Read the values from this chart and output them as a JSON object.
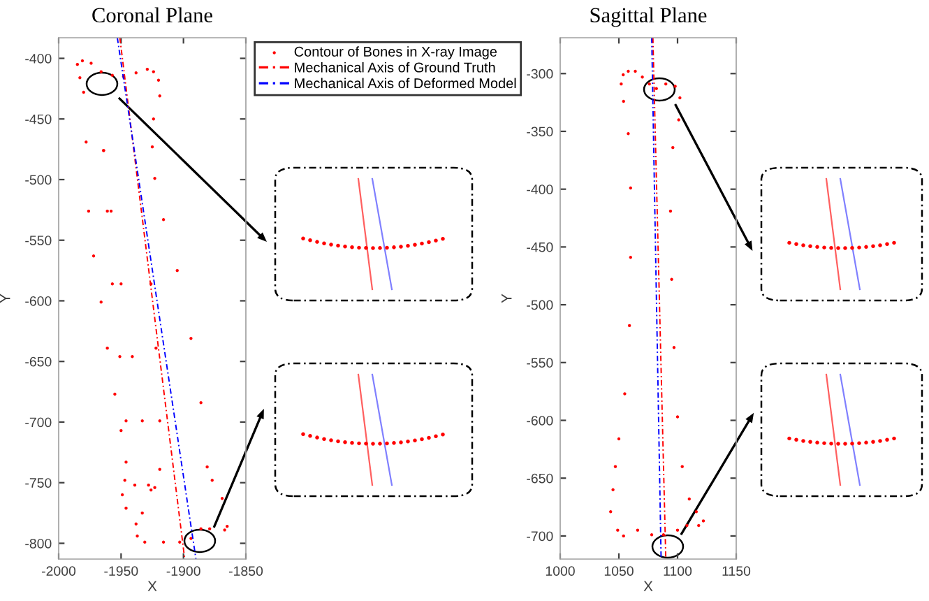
{
  "chart_data": [
    {
      "type": "scatter",
      "title": "Coronal Plane",
      "xlabel": "X",
      "ylabel": "Y",
      "xlim": [
        -2000,
        -1850
      ],
      "ylim": [
        -813,
        -383
      ],
      "xticks": [
        -2000,
        -1950,
        -1900,
        -1850
      ],
      "yticks": [
        -800,
        -750,
        -700,
        -650,
        -600,
        -550,
        -500,
        -450,
        -400
      ],
      "grid": false,
      "legend": "top right",
      "series": [
        {
          "name": "Contour of Bones in X-ray Image",
          "marker": "circle",
          "color": "#ff0000",
          "x": [
            -1985,
            -1981,
            -1974,
            -1966,
            -1957,
            -1948,
            -1938,
            -1929,
            -1924,
            -1920,
            -1919,
            -1924,
            -1925,
            -1923,
            -1916,
            -1905,
            -1894,
            -1886,
            -1881,
            -1877,
            -1869,
            -1865,
            -1867,
            -1879,
            -1886,
            -1894,
            -1903,
            -1916,
            -1931,
            -1937,
            -1938,
            -1946,
            -1949,
            -1947,
            -1946,
            -1950,
            -1955,
            -1961,
            -1966,
            -1972,
            -1976,
            -1978,
            -1980,
            -1983,
            -1964,
            -1961,
            -1957,
            -1951,
            -1946,
            -1939,
            -1933,
            -1964,
            -1958,
            -1950,
            -1941,
            -1933,
            -1928,
            -1926,
            -1923,
            -1919,
            -1919,
            -1922,
            -1926
          ],
          "values": [
            -405,
            -402,
            -404,
            -411,
            -414,
            -415,
            -412,
            -409,
            -411,
            -418,
            -431,
            -450,
            -473,
            -499,
            -533,
            -575,
            -631,
            -684,
            -737,
            -748,
            -763,
            -786,
            -789,
            -788,
            -788,
            -796,
            -799,
            -799,
            -799,
            -794,
            -784,
            -771,
            -760,
            -748,
            -733,
            -707,
            -677,
            -639,
            -601,
            -563,
            -526,
            -469,
            -428,
            -416,
            -476,
            -526,
            -586,
            -646,
            -699,
            -752,
            -775,
            -476,
            -526,
            -586,
            -646,
            -699,
            -752,
            -756,
            -754,
            -739,
            -699,
            -639,
            -586
          ]
        },
        {
          "name": "Mechanical Axis of Ground Truth",
          "type": "line",
          "line_style": "dashed",
          "color": "#ff0000",
          "x": [
            -1951,
            -1899
          ],
          "values": [
            -383,
            -813
          ]
        },
        {
          "name": "Mechanical Axis of Deformed Model",
          "type": "line",
          "line_style": "dashed",
          "color": "#0000ff",
          "x": [
            -1953,
            -1890
          ],
          "values": [
            -383,
            -813
          ]
        }
      ]
    },
    {
      "type": "scatter",
      "title": "Sagittal Plane",
      "xlabel": "X",
      "ylabel": "Y",
      "xlim": [
        1000,
        1150
      ],
      "ylim": [
        -720,
        -269
      ],
      "xticks": [
        1000,
        1050,
        1100,
        1150
      ],
      "yticks": [
        -700,
        -650,
        -600,
        -550,
        -500,
        -450,
        -400,
        -350,
        -300
      ],
      "grid": false,
      "legend": false,
      "series": [
        {
          "marker": "circle",
          "color": "#ff0000",
          "x": [
            1053.7,
            1058,
            1064,
            1070,
            1076,
            1082,
            1090,
            1098,
            1102,
            1101,
            1096,
            1094,
            1095,
            1097,
            1100,
            1104,
            1110,
            1116,
            1122,
            1118,
            1108,
            1100,
            1088,
            1078,
            1066,
            1054,
            1049,
            1043,
            1045,
            1047,
            1050,
            1055,
            1059,
            1060,
            1060,
            1058,
            1054,
            1052
          ],
          "values": [
            -301,
            -298,
            -298,
            -303,
            -309,
            -313,
            -309,
            -311,
            -321,
            -340,
            -364,
            -419,
            -478,
            -537,
            -597,
            -640,
            -668,
            -679,
            -687,
            -691,
            -691,
            -695,
            -699,
            -699,
            -695,
            -700,
            -695,
            -679,
            -660,
            -640,
            -616,
            -577,
            -518,
            -459,
            -399,
            -352,
            -324,
            -309
          ]
        },
        {
          "type": "line",
          "line_style": "dashed",
          "color": "#ff0000",
          "x": [
            1079,
            1090
          ],
          "values": [
            -269,
            -720
          ]
        },
        {
          "type": "line",
          "line_style": "dashed",
          "color": "#0000ff",
          "x": [
            1078,
            1086
          ],
          "values": [
            -269,
            -720
          ]
        }
      ]
    }
  ]
}
